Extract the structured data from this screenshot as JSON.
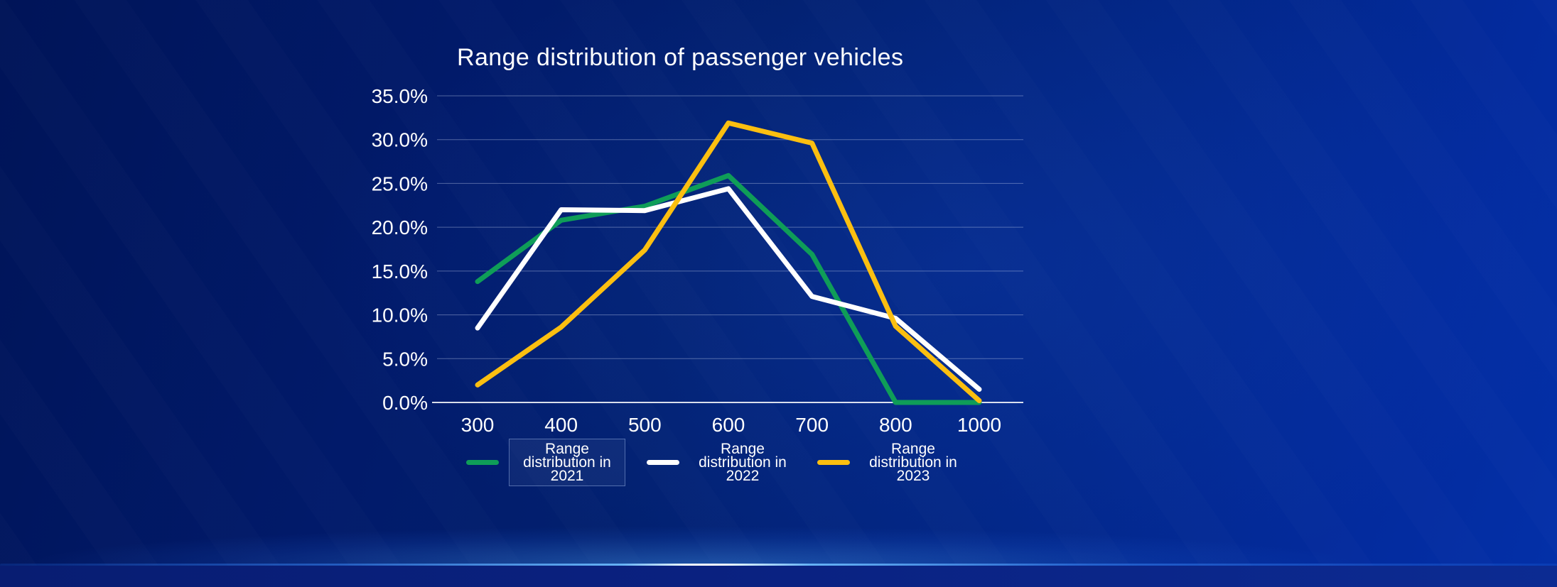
{
  "chart_data": {
    "type": "line",
    "title": "Range distribution of passenger vehicles",
    "categories": [
      "300",
      "400",
      "500",
      "600",
      "700",
      "800",
      "1000"
    ],
    "series": [
      {
        "name": "Range distribution in 2021",
        "color": "#0f9d58",
        "values": [
          13.8,
          20.8,
          22.4,
          25.9,
          16.9,
          0,
          0
        ]
      },
      {
        "name": "Range distribution in 2022",
        "color": "#ffffff",
        "values": [
          8.5,
          22.0,
          21.9,
          24.4,
          12.1,
          9.6,
          1.5
        ]
      },
      {
        "name": "Range distribution in 2023",
        "color": "#fcbf10",
        "values": [
          2.0,
          8.6,
          17.4,
          31.9,
          29.6,
          8.7,
          0.2
        ]
      }
    ],
    "ylim": [
      0,
      35
    ],
    "y_tick_step": 5,
    "y_tick_labels": [
      "0.0%",
      "5.0%",
      "10.0%",
      "15.0%",
      "20.0%",
      "25.0%",
      "30.0%",
      "35.0%"
    ],
    "grid": true,
    "legend_position": "bottom",
    "line_width": 7
  },
  "style_colors": {
    "background_dark": "#001458",
    "background_bright": "#0330a8",
    "gridline": "rgba(200,212,240,0.4)",
    "axis_line": "rgba(255,255,255,0.85)",
    "text": "#ffffff",
    "horizon_glow": "#6ec1ff"
  }
}
